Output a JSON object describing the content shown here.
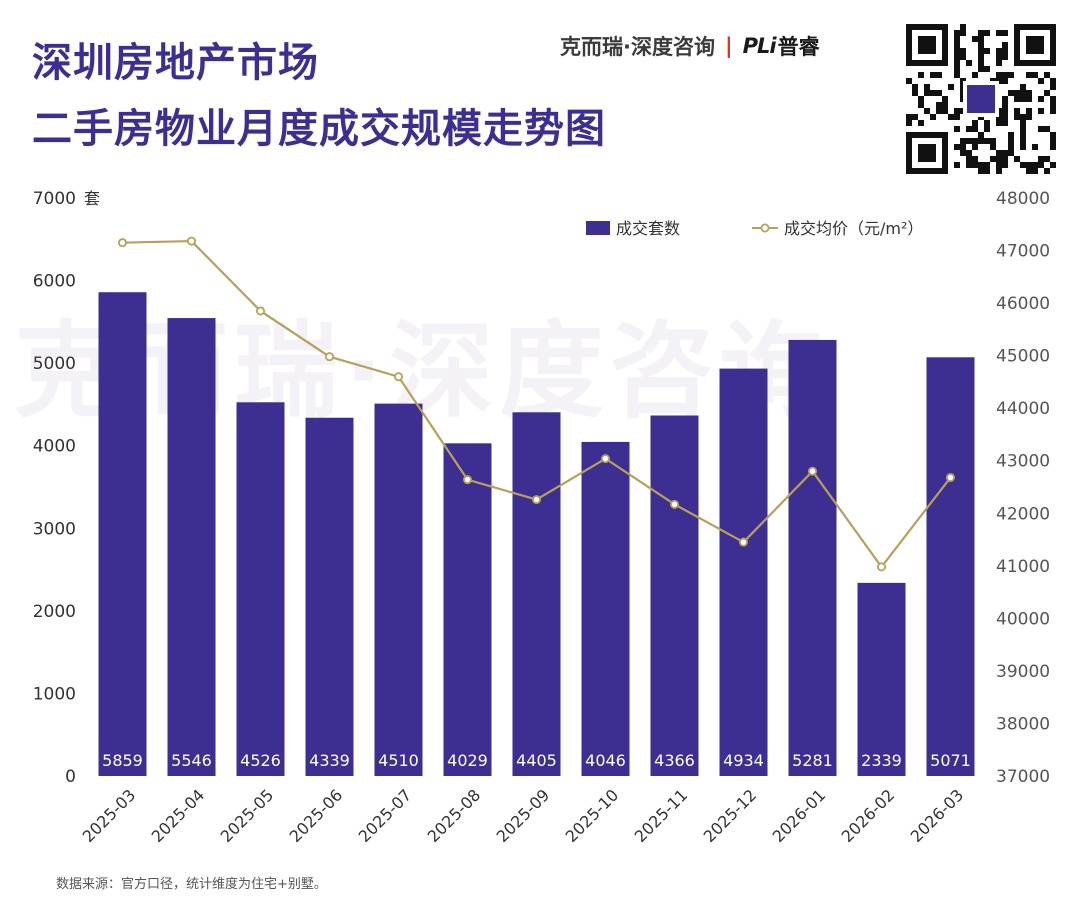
{
  "header": {
    "title_line1": "深圳房地产市场",
    "title_line2": "二手房物业月度成交规模走势图",
    "brand_name": "克而瑞·深度咨询",
    "brand_separator": "|",
    "brand_logo": "PLi",
    "brand_logo_cn": "普睿"
  },
  "watermark": "克而瑞·深度咨询",
  "qr_code": {
    "icon": "qr-code-icon"
  },
  "footer": {
    "source_note": "数据来源：官方口径，统计维度为住宅+别墅。"
  },
  "colors": {
    "title": "#3d2f92",
    "bar": "#3d2f92",
    "line": "#b8a05a",
    "axis_text": "#333333",
    "bar_label": "#ffffff"
  },
  "chart_data": {
    "type": "bar+line",
    "title": "深圳房地产市场 二手房物业月度成交规模走势图",
    "categories": [
      "2025-03",
      "2025-04",
      "2025-05",
      "2025-06",
      "2025-07",
      "2025-08",
      "2025-09",
      "2025-10",
      "2025-11",
      "2025-12",
      "2026-01",
      "2026-02",
      "2026-03"
    ],
    "series": [
      {
        "name": "成交套数",
        "type": "bar",
        "axis": "left",
        "values": [
          5859,
          5546,
          4526,
          4339,
          4510,
          4029,
          4405,
          4046,
          4366,
          4934,
          5281,
          2339,
          5071
        ]
      },
      {
        "name": "成交均价（元/m²）",
        "type": "line",
        "axis": "right",
        "values": [
          47150,
          47180,
          45850,
          44980,
          44600,
          42640,
          42260,
          43040,
          42170,
          41450,
          42800,
          40980,
          42680
        ]
      }
    ],
    "y_left": {
      "label": "套",
      "range": [
        0,
        7000
      ],
      "ticks": [
        "0",
        "1000",
        "2000",
        "3000",
        "4000",
        "5000",
        "6000",
        "7000"
      ]
    },
    "y_right": {
      "label": "",
      "range": [
        37000,
        48000
      ],
      "ticks": [
        "37000",
        "38000",
        "39000",
        "40000",
        "41000",
        "42000",
        "43000",
        "44000",
        "45000",
        "46000",
        "47000",
        "48000"
      ]
    },
    "legend": {
      "position": "top-right",
      "bar_label": "成交套数",
      "line_label": "成交均价（元/m²）"
    },
    "grid": false
  }
}
